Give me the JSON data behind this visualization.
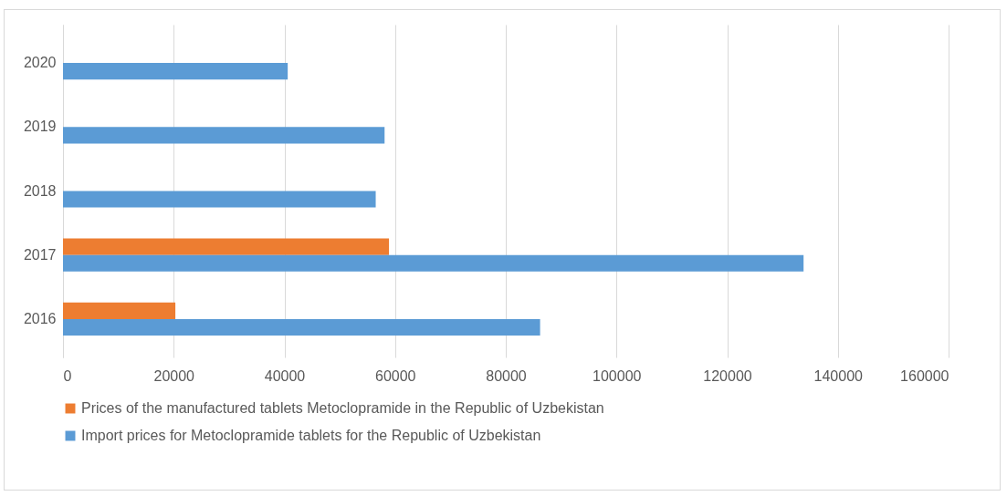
{
  "chart_data": {
    "type": "bar",
    "orientation": "horizontal",
    "categories": [
      "2020",
      "2019",
      "2018",
      "2017",
      "2016"
    ],
    "series": [
      {
        "name": "Prices of the manufactured tablets Metoclopramide in the Republic of Uzbekistan",
        "color": "#ed7d31",
        "values": [
          null,
          null,
          null,
          58900,
          20300
        ]
      },
      {
        "name": "Import prices for Metoclopramide tablets for the Republic of Uzbekistan",
        "color": "#5b9bd5",
        "values": [
          40600,
          58100,
          56500,
          133800,
          86200
        ]
      }
    ],
    "xlim": [
      0,
      160000
    ],
    "xticks": [
      0,
      20000,
      40000,
      60000,
      80000,
      100000,
      120000,
      140000,
      160000
    ],
    "grid": "x",
    "legend": "bottom"
  }
}
